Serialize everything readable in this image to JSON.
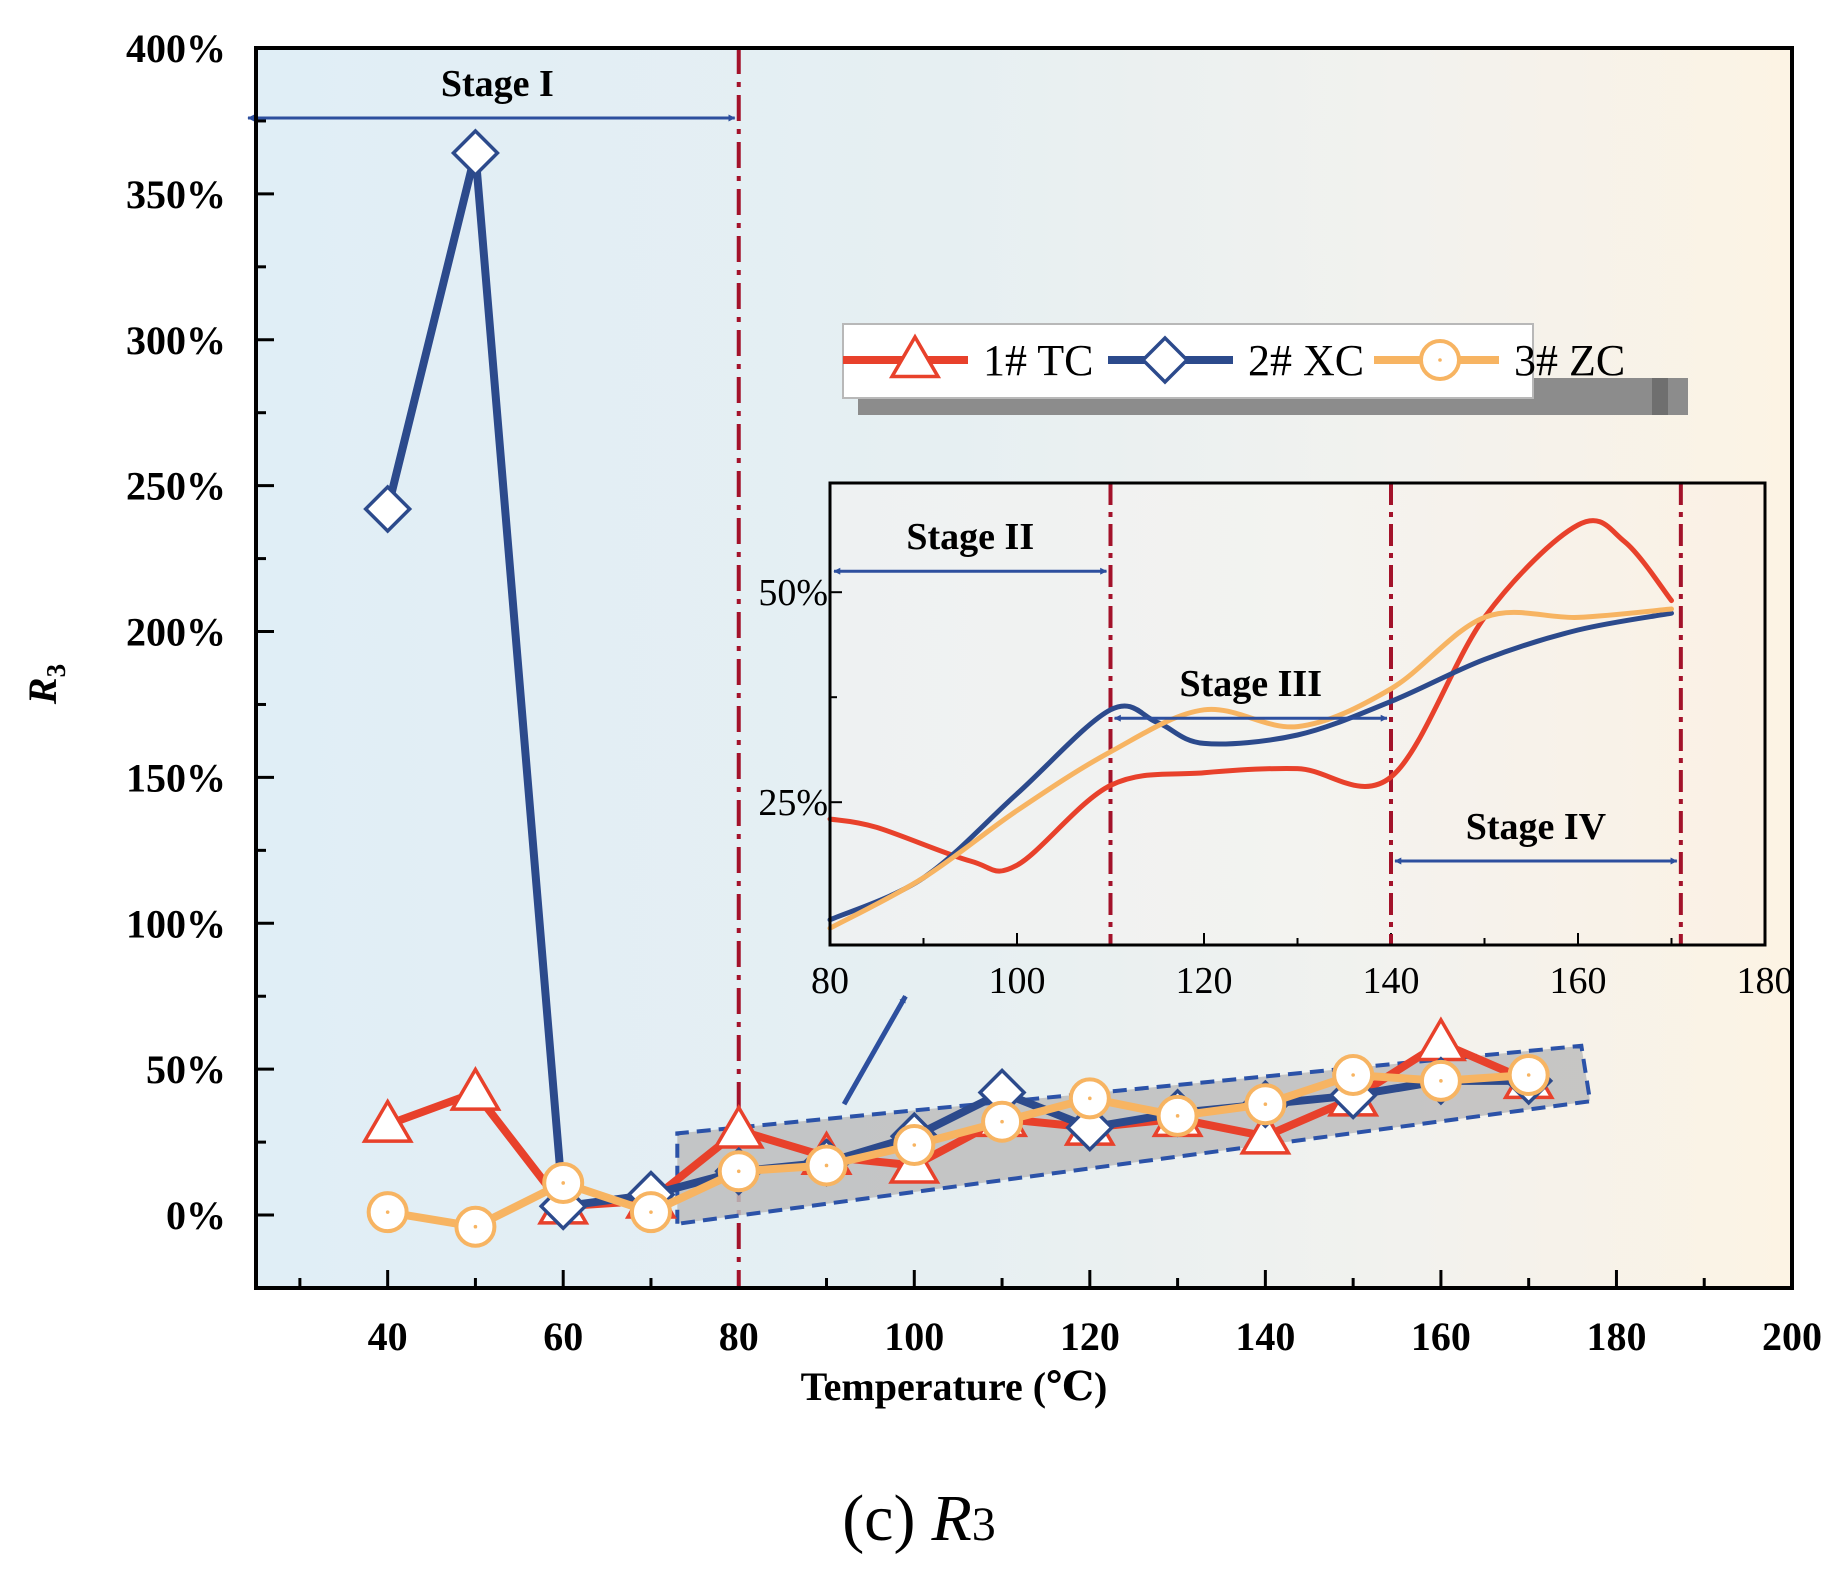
{
  "colors": {
    "tc": "#e8412b",
    "xc": "#2c4a8c",
    "zc": "#f7b462",
    "stage_line": "#a3122a",
    "arrow": "#2d4f9e",
    "bg_left": "#e0eef6",
    "bg_right": "#fcf3e4",
    "highlight_fill": "#bdbdbd",
    "highlight_border": "#2b52a8",
    "legend_shadow": "#8c8c8c"
  },
  "chart_data": [
    {
      "id": "main",
      "type": "line",
      "xlabel": "Temperature (℃)",
      "ylabel": "R",
      "ylabel_sub": "3",
      "xlim": [
        25,
        200
      ],
      "ylim": [
        -25,
        400
      ],
      "x_ticks": [
        40,
        60,
        80,
        100,
        120,
        140,
        160,
        180,
        200
      ],
      "y_ticks": [
        0,
        50,
        100,
        150,
        200,
        250,
        300,
        350,
        400
      ],
      "y_tick_labels": [
        "0%",
        "50%",
        "100%",
        "150%",
        "200%",
        "250%",
        "300%",
        "350%",
        "400%"
      ],
      "legend": {
        "placement": "upper-middle-right",
        "entries": [
          "1# TC",
          "2# XC",
          "3# ZC"
        ]
      },
      "series": [
        {
          "name": "1# TC",
          "marker": "triangle",
          "x": [
            40,
            50,
            60,
            70,
            80,
            90,
            100,
            110,
            120,
            130,
            140,
            150,
            160,
            170
          ],
          "values": [
            31,
            42,
            3,
            5,
            29,
            20,
            17,
            33,
            30,
            33,
            27,
            40,
            59,
            46
          ]
        },
        {
          "name": "2# XC",
          "marker": "diamond",
          "x": [
            40,
            50,
            60,
            70,
            80,
            90,
            100,
            110,
            120,
            130,
            140,
            150,
            160,
            170
          ],
          "values": [
            242,
            364,
            3,
            7,
            15,
            18,
            27,
            42,
            30,
            35,
            38,
            41,
            46,
            46
          ]
        },
        {
          "name": "3# ZC",
          "marker": "circle",
          "x": [
            40,
            50,
            60,
            70,
            80,
            90,
            100,
            110,
            120,
            130,
            140,
            150,
            160,
            170
          ],
          "values": [
            1,
            -4,
            11,
            1,
            15,
            17,
            24,
            32,
            40,
            34,
            38,
            48,
            46,
            48
          ]
        }
      ],
      "annotations": {
        "stage_label": "Stage I",
        "stage_divider_x": 80,
        "stage_arrow_x": [
          25,
          80
        ],
        "stage_arrow_y": 376
      }
    },
    {
      "id": "inset",
      "type": "line",
      "xlim": [
        80,
        180
      ],
      "ylim": [
        8,
        63
      ],
      "x_ticks": [
        80,
        100,
        120,
        140,
        160,
        180
      ],
      "y_ticks": [
        25,
        50
      ],
      "y_tick_labels": [
        "25%",
        "50%"
      ],
      "stage_dividers": [
        110,
        140,
        171
      ],
      "stages": [
        {
          "label": "Stage II",
          "arrow_x": [
            80,
            110
          ],
          "arrow_y": 52.5
        },
        {
          "label": "Stage III",
          "arrow_x": [
            110,
            140
          ],
          "arrow_y": 35
        },
        {
          "label": "Stage IV",
          "arrow_x": [
            140,
            171
          ],
          "arrow_y": 18
        }
      ],
      "series": [
        {
          "name": "1# TC",
          "x": [
            80,
            85,
            95,
            100,
            110,
            120,
            130,
            140,
            150,
            160,
            165,
            170
          ],
          "values": [
            23,
            22,
            18,
            17.5,
            27,
            28.5,
            29,
            28,
            47,
            58,
            56,
            49
          ]
        },
        {
          "name": "2# XC",
          "x": [
            80,
            90,
            100,
            110,
            115,
            120,
            130,
            140,
            150,
            160,
            170
          ],
          "values": [
            11,
            16,
            26,
            36,
            34.5,
            32,
            33,
            37,
            42,
            45.5,
            47.5
          ]
        },
        {
          "name": "3# ZC",
          "x": [
            80,
            90,
            100,
            110,
            120,
            130,
            140,
            150,
            160,
            170
          ],
          "values": [
            10,
            16,
            24,
            31,
            36,
            34,
            38.5,
            47,
            47,
            48
          ]
        }
      ]
    }
  ],
  "caption": {
    "prefix": "(c)",
    "symbol": "R",
    "subscript": "3"
  }
}
